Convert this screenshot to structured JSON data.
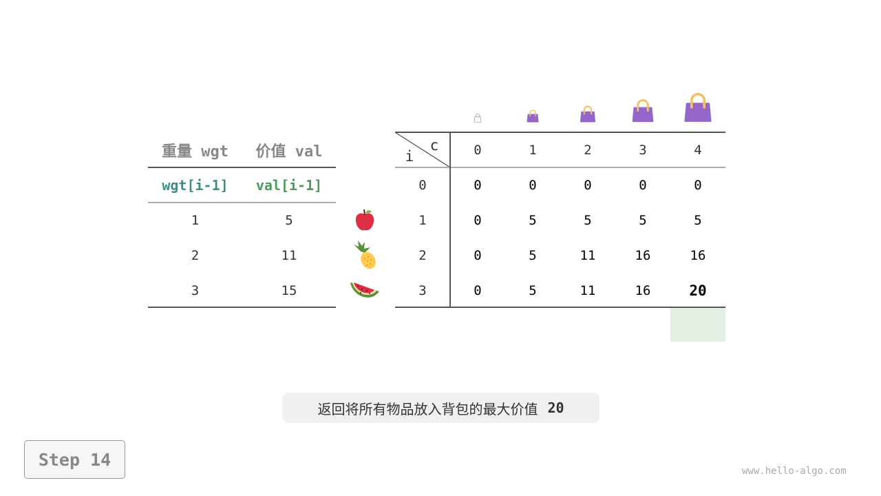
{
  "left_table": {
    "headers": [
      "重量 wgt",
      "价值 val"
    ],
    "subheaders": [
      "wgt[i-1]",
      "val[i-1]"
    ],
    "rows": [
      [
        "1",
        "5"
      ],
      [
        "2",
        "11"
      ],
      [
        "3",
        "15"
      ]
    ]
  },
  "items": [
    {
      "icon": "apple-icon"
    },
    {
      "icon": "pineapple-icon"
    },
    {
      "icon": "watermelon-icon"
    }
  ],
  "dp_table": {
    "corner_row_label": "i",
    "corner_col_label": "c",
    "capacities": [
      "0",
      "1",
      "2",
      "3",
      "4"
    ],
    "row_labels": [
      "0",
      "1",
      "2",
      "3"
    ],
    "rows": [
      [
        "0",
        "0",
        "0",
        "0",
        "0"
      ],
      [
        "0",
        "5",
        "5",
        "5",
        "5"
      ],
      [
        "0",
        "5",
        "11",
        "16",
        "16"
      ],
      [
        "0",
        "5",
        "11",
        "16",
        "20"
      ]
    ],
    "highlight": {
      "row": 3,
      "col": 4,
      "color": "#e3efe3"
    }
  },
  "bag_icons": [
    "bag-outline-icon",
    "bag-icon",
    "bag-icon",
    "bag-icon",
    "bag-icon"
  ],
  "caption": {
    "text": "返回将所有物品放入背包的最大价值",
    "value": "20"
  },
  "step_label": "Step 14",
  "watermark": "www.hello-algo.com",
  "colors": {
    "wgt": "#3a8f87",
    "val": "#4c9a5a",
    "header": "#888888",
    "bag": "#9466c9",
    "handle": "#f5c065"
  }
}
